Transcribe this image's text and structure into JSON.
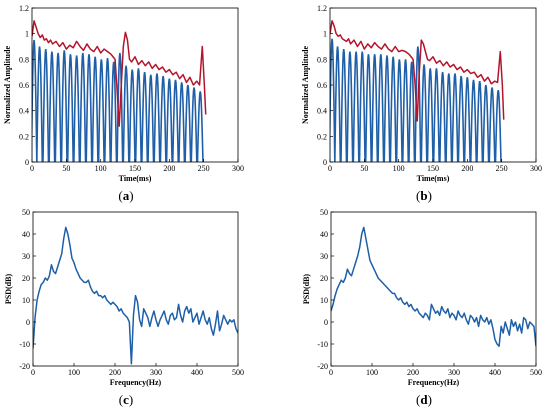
{
  "chart_data": [
    {
      "panel_label": "a",
      "type": "line",
      "xlabel": "Time(ms)",
      "ylabel": "Normalized Amplitude",
      "xlim": [
        0,
        300
      ],
      "ylim": [
        0,
        1.2
      ],
      "xticks": [
        0,
        50,
        100,
        150,
        200,
        250,
        300
      ],
      "yticks": [
        0,
        0.2,
        0.4,
        0.6,
        0.8,
        1,
        1.2
      ],
      "tick_labels_x": [
        "0",
        "50",
        "100",
        "150",
        "200",
        "250",
        "300"
      ],
      "tick_labels_y": [
        "0",
        "0.2",
        "0.4",
        "0.6",
        "0.8",
        "1",
        "1.2"
      ],
      "colors": {
        "pulses": "#1f5fa8",
        "envelope": "#b5132b"
      },
      "series": [
        {
          "kind": "pulses",
          "x": [
            3,
            11,
            20,
            29,
            38,
            47,
            56,
            65,
            74,
            83,
            92,
            101,
            110,
            119,
            128,
            137,
            146,
            155,
            164,
            173,
            182,
            191,
            200,
            209,
            218,
            227,
            236,
            245
          ],
          "peaks": [
            0.95,
            0.9,
            0.88,
            0.86,
            0.85,
            0.87,
            0.84,
            0.83,
            0.85,
            0.84,
            0.82,
            0.8,
            0.81,
            0.78,
            0.85,
            0.75,
            0.72,
            0.73,
            0.7,
            0.68,
            0.69,
            0.67,
            0.65,
            0.64,
            0.62,
            0.6,
            0.58,
            0.55
          ],
          "width": 8
        },
        {
          "kind": "envelope",
          "x": [
            0,
            3,
            6,
            9,
            12,
            15,
            18,
            21,
            24,
            27,
            30,
            35,
            40,
            45,
            50,
            55,
            60,
            65,
            70,
            75,
            80,
            85,
            90,
            95,
            100,
            105,
            110,
            115,
            118,
            121,
            124,
            127,
            130,
            133,
            136,
            139,
            142,
            145,
            150,
            155,
            160,
            165,
            170,
            175,
            180,
            185,
            190,
            195,
            200,
            205,
            210,
            215,
            220,
            225,
            230,
            235,
            240,
            244,
            248,
            251,
            253
          ],
          "y": [
            0.98,
            1.1,
            1.05,
            1.0,
            0.97,
            0.99,
            0.95,
            0.96,
            0.93,
            0.95,
            0.92,
            0.94,
            0.9,
            0.93,
            0.88,
            0.91,
            0.89,
            0.94,
            0.9,
            0.87,
            0.92,
            0.88,
            0.86,
            0.9,
            0.85,
            0.88,
            0.86,
            0.84,
            0.82,
            0.8,
            0.55,
            0.28,
            0.6,
            0.9,
            1.01,
            0.95,
            0.8,
            0.78,
            0.82,
            0.76,
            0.79,
            0.75,
            0.78,
            0.73,
            0.76,
            0.72,
            0.74,
            0.7,
            0.72,
            0.68,
            0.7,
            0.65,
            0.68,
            0.62,
            0.66,
            0.6,
            0.63,
            0.6,
            0.9,
            0.6,
            0.37
          ]
        }
      ]
    },
    {
      "panel_label": "b",
      "type": "line",
      "xlabel": "Time(ms)",
      "ylabel": "Normalized Amplitude",
      "xlim": [
        0,
        300
      ],
      "ylim": [
        0,
        1.2
      ],
      "xticks": [
        0,
        50,
        100,
        150,
        200,
        250,
        300
      ],
      "yticks": [
        0,
        0.2,
        0.4,
        0.6,
        0.8,
        1,
        1.2
      ],
      "tick_labels_x": [
        "0",
        "50",
        "100",
        "150",
        "200",
        "250",
        "300"
      ],
      "tick_labels_y": [
        "0",
        "0.2",
        "0.4",
        "0.6",
        "0.8",
        "1",
        "1.2"
      ],
      "colors": {
        "pulses": "#1f5fa8",
        "envelope": "#b5132b"
      },
      "series": [
        {
          "kind": "pulses",
          "x": [
            3,
            11,
            20,
            29,
            38,
            47,
            56,
            65,
            74,
            83,
            92,
            101,
            110,
            119,
            128,
            137,
            146,
            155,
            164,
            173,
            182,
            191,
            200,
            209,
            218,
            227,
            236,
            245
          ],
          "peaks": [
            0.96,
            0.9,
            0.88,
            0.86,
            0.86,
            0.86,
            0.84,
            0.84,
            0.84,
            0.83,
            0.82,
            0.8,
            0.8,
            0.78,
            0.9,
            0.76,
            0.73,
            0.73,
            0.7,
            0.69,
            0.69,
            0.67,
            0.66,
            0.64,
            0.63,
            0.6,
            0.58,
            0.56
          ],
          "width": 8
        },
        {
          "kind": "envelope",
          "x": [
            0,
            3,
            6,
            9,
            12,
            15,
            18,
            21,
            24,
            27,
            30,
            35,
            40,
            45,
            50,
            55,
            60,
            65,
            70,
            75,
            80,
            85,
            90,
            95,
            100,
            105,
            110,
            115,
            118,
            121,
            124,
            127,
            130,
            133,
            136,
            139,
            142,
            145,
            150,
            155,
            160,
            165,
            170,
            175,
            180,
            185,
            190,
            195,
            200,
            205,
            210,
            215,
            220,
            225,
            230,
            235,
            240,
            244,
            248,
            251,
            253
          ],
          "y": [
            1.0,
            1.1,
            1.06,
            1.0,
            0.98,
            0.99,
            0.96,
            0.95,
            0.94,
            0.96,
            0.92,
            0.95,
            0.9,
            0.94,
            0.88,
            0.92,
            0.89,
            0.93,
            0.9,
            0.88,
            0.92,
            0.88,
            0.86,
            0.9,
            0.86,
            0.87,
            0.86,
            0.84,
            0.82,
            0.8,
            0.6,
            0.32,
            0.7,
            0.95,
            0.92,
            0.86,
            0.8,
            0.79,
            0.82,
            0.77,
            0.79,
            0.75,
            0.78,
            0.74,
            0.76,
            0.72,
            0.74,
            0.7,
            0.72,
            0.69,
            0.7,
            0.66,
            0.68,
            0.63,
            0.66,
            0.61,
            0.63,
            0.62,
            0.86,
            0.6,
            0.33
          ]
        }
      ]
    },
    {
      "panel_label": "c",
      "type": "line",
      "xlabel": "Frequency(Hz)",
      "ylabel": "PSD(dB)",
      "xlim": [
        0,
        500
      ],
      "ylim": [
        -20,
        50
      ],
      "xticks": [
        0,
        100,
        200,
        300,
        400,
        500
      ],
      "yticks": [
        -20,
        -10,
        0,
        10,
        20,
        30,
        40,
        50
      ],
      "tick_labels_x": [
        "0",
        "100",
        "200",
        "300",
        "400",
        "500"
      ],
      "tick_labels_y": [
        "-20",
        "-10",
        "0",
        "10",
        "20",
        "30",
        "40",
        "50"
      ],
      "colors": {
        "line": "#1f5fa8"
      },
      "series": [
        {
          "kind": "line",
          "x": [
            0,
            5,
            10,
            15,
            20,
            25,
            30,
            35,
            40,
            45,
            50,
            55,
            60,
            65,
            70,
            75,
            80,
            85,
            90,
            95,
            100,
            105,
            110,
            115,
            120,
            125,
            130,
            135,
            140,
            145,
            150,
            155,
            160,
            165,
            170,
            175,
            180,
            185,
            190,
            195,
            200,
            205,
            210,
            215,
            220,
            225,
            230,
            235,
            240,
            245,
            250,
            255,
            260,
            265,
            270,
            275,
            280,
            285,
            290,
            295,
            300,
            305,
            310,
            315,
            320,
            325,
            330,
            335,
            340,
            345,
            350,
            355,
            360,
            365,
            370,
            375,
            380,
            385,
            390,
            395,
            400,
            405,
            410,
            415,
            420,
            425,
            430,
            435,
            440,
            445,
            450,
            455,
            460,
            465,
            470,
            475,
            480,
            485,
            490,
            495,
            500
          ],
          "y": [
            -12,
            2,
            10,
            14,
            17,
            18,
            20,
            19,
            21,
            26,
            23,
            22,
            25,
            28,
            31,
            38,
            43,
            40,
            35,
            29,
            27,
            24,
            22,
            20,
            19,
            18,
            18,
            19,
            16,
            14,
            13,
            14,
            12,
            12,
            11,
            12,
            10,
            9,
            8,
            9,
            8,
            7,
            5,
            6,
            4,
            3,
            2,
            0,
            -19,
            3,
            12,
            9,
            1,
            -2,
            6,
            4,
            2,
            -2,
            2,
            5,
            1,
            -2,
            1,
            3,
            5,
            1,
            -1,
            3,
            4,
            1,
            2,
            8,
            3,
            0,
            5,
            7,
            4,
            6,
            0,
            2,
            4,
            -1,
            2,
            5,
            1,
            -1,
            2,
            -3,
            -6,
            -1,
            5,
            -4,
            -1,
            3,
            1,
            -1,
            1,
            0,
            1,
            -3,
            -5
          ]
        }
      ]
    },
    {
      "panel_label": "d",
      "type": "line",
      "xlabel": "Frequency(Hz)",
      "ylabel": "PSD(dB)",
      "xlim": [
        0,
        500
      ],
      "ylim": [
        -20,
        50
      ],
      "xticks": [
        0,
        100,
        200,
        300,
        400,
        500
      ],
      "yticks": [
        -20,
        -10,
        0,
        10,
        20,
        30,
        40,
        50
      ],
      "tick_labels_x": [
        "0",
        "100",
        "200",
        "300",
        "400",
        "500"
      ],
      "tick_labels_y": [
        "-20",
        "-10",
        "0",
        "10",
        "20",
        "30",
        "40",
        "50"
      ],
      "colors": {
        "line": "#1f5fa8"
      },
      "series": [
        {
          "kind": "line",
          "x": [
            0,
            5,
            10,
            15,
            20,
            25,
            30,
            35,
            40,
            45,
            50,
            55,
            60,
            65,
            70,
            75,
            80,
            85,
            90,
            95,
            100,
            105,
            110,
            115,
            120,
            125,
            130,
            135,
            140,
            145,
            150,
            155,
            160,
            165,
            170,
            175,
            180,
            185,
            190,
            195,
            200,
            205,
            210,
            215,
            220,
            225,
            230,
            235,
            240,
            245,
            250,
            255,
            260,
            265,
            270,
            275,
            280,
            285,
            290,
            295,
            300,
            305,
            310,
            315,
            320,
            325,
            330,
            335,
            340,
            345,
            350,
            355,
            360,
            365,
            370,
            375,
            380,
            385,
            390,
            395,
            400,
            405,
            410,
            415,
            420,
            425,
            430,
            435,
            440,
            445,
            450,
            455,
            460,
            465,
            470,
            475,
            480,
            485,
            490,
            495,
            500
          ],
          "y": [
            5,
            8,
            12,
            15,
            17,
            19,
            18,
            20,
            24,
            22,
            21,
            24,
            27,
            30,
            34,
            40,
            43,
            38,
            33,
            28,
            26,
            24,
            22,
            20,
            19,
            18,
            17,
            16,
            15,
            14,
            13,
            13,
            11,
            10,
            11,
            9,
            8,
            9,
            7,
            8,
            6,
            5,
            6,
            4,
            3,
            2,
            4,
            3,
            1,
            8,
            6,
            4,
            5,
            3,
            7,
            5,
            4,
            6,
            2,
            4,
            3,
            1,
            5,
            3,
            2,
            4,
            1,
            -1,
            3,
            2,
            0,
            2,
            -2,
            3,
            1,
            0,
            2,
            -1,
            1,
            -3,
            -8,
            -10,
            -11,
            -2,
            -5,
            0,
            -3,
            -6,
            1,
            -2,
            0,
            -4,
            -1,
            -5,
            2,
            1,
            -3,
            0,
            -1,
            -2,
            -11
          ]
        }
      ]
    }
  ]
}
